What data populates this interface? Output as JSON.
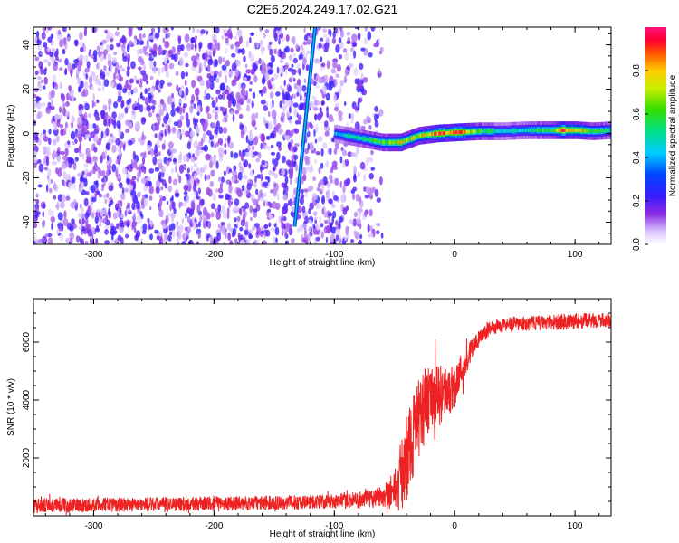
{
  "title": "C2E6.2024.249.17.02.G21",
  "chart_data": [
    {
      "type": "heatmap",
      "xlabel": "Height of straight line (km)",
      "ylabel": "Frequency (Hz)",
      "xlim": [
        -350,
        130
      ],
      "ylim": [
        -50,
        48
      ],
      "x_ticks": [
        -300,
        -200,
        -100,
        0,
        100
      ],
      "y_ticks": [
        -40,
        -20,
        0,
        20,
        40
      ],
      "colorbar": {
        "label": "Normalized spectral amplitude",
        "range": [
          0,
          1
        ],
        "ticks": [
          0.0,
          0.2,
          0.4,
          0.6,
          0.8
        ],
        "colormap": "rainbow (white-violet-blue-cyan-green-yellow-red-magenta)"
      },
      "features": [
        {
          "name": "scattered low-amplitude noise",
          "x_range": [
            -350,
            -60
          ],
          "y_range": [
            -50,
            48
          ],
          "amplitude": 0.15
        },
        {
          "name": "sloped line",
          "from": [
            -133,
            -42
          ],
          "to": [
            -116,
            48
          ],
          "amplitude": 0.35
        },
        {
          "name": "signal band",
          "x": [
            -100,
            -80,
            -60,
            -45,
            -30,
            -15,
            0,
            20,
            40,
            60,
            80,
            90,
            100,
            115,
            130
          ],
          "frequency": [
            0,
            -2,
            -4,
            -4,
            -1,
            0,
            0.5,
            1,
            1,
            1.5,
            1.5,
            1.5,
            1.5,
            1,
            1.5
          ],
          "amplitude": [
            0.4,
            0.5,
            0.6,
            0.75,
            0.7,
            0.85,
            0.9,
            0.6,
            0.45,
            0.5,
            0.6,
            0.9,
            0.8,
            0.6,
            0.55
          ]
        }
      ]
    },
    {
      "type": "line",
      "xlabel": "Height of straight line (km)",
      "ylabel": "SNR (10 * v/v)",
      "xlim": [
        -350,
        130
      ],
      "ylim": [
        0,
        7500
      ],
      "x_ticks": [
        -300,
        -200,
        -100,
        0,
        100
      ],
      "y_ticks": [
        2000,
        4000,
        6000
      ],
      "line_color": "#ee2222",
      "series": [
        {
          "x": [
            -350,
            -300,
            -250,
            -200,
            -150,
            -100,
            -80,
            -60,
            -50,
            -45,
            -40,
            -35,
            -30,
            -25,
            -20,
            -15,
            -10,
            -5,
            0,
            5,
            10,
            15,
            20,
            25,
            30,
            35,
            40,
            50,
            60,
            70,
            80,
            90,
            100,
            110,
            120,
            130
          ],
          "values": [
            350,
            380,
            400,
            420,
            450,
            500,
            550,
            700,
            900,
            1300,
            2000,
            2700,
            3300,
            3800,
            4000,
            4100,
            4200,
            4300,
            4500,
            5000,
            5400,
            5800,
            6100,
            6300,
            6500,
            6550,
            6600,
            6620,
            6640,
            6660,
            6680,
            6700,
            6720,
            6740,
            6750,
            6760
          ],
          "noise": [
            250,
            250,
            250,
            250,
            250,
            250,
            300,
            400,
            700,
            1200,
            1500,
            1500,
            1400,
            1300,
            1200,
            1100,
            1000,
            900,
            800,
            600,
            500,
            400,
            300,
            250,
            250,
            250,
            250,
            250,
            250,
            250,
            250,
            300,
            300,
            250,
            250,
            250
          ]
        }
      ]
    }
  ]
}
